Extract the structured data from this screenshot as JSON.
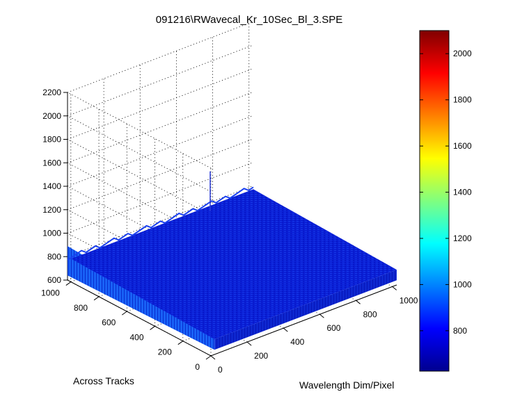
{
  "chart_data": {
    "type": "surface",
    "title": "091216\\RWavecal_Kr_10Sec_Bl_3.SPE",
    "xlabel": "Wavelength Dim/Pixel",
    "ylabel": "Across Tracks",
    "zlabel": "",
    "x_ticks": [
      "0",
      "200",
      "400",
      "600",
      "800",
      "1000"
    ],
    "y_ticks": [
      "0",
      "200",
      "400",
      "600",
      "800",
      "1000"
    ],
    "z_ticks": [
      "600",
      "800",
      "1000",
      "1200",
      "1400",
      "1600",
      "1800",
      "2000",
      "2200"
    ],
    "xlim": [
      0,
      1024
    ],
    "ylim": [
      0,
      1024
    ],
    "zlim": [
      600,
      2200
    ],
    "grid": true,
    "colormap": "jet",
    "colorbar": {
      "range": [
        625,
        2100
      ],
      "ticks": [
        "800",
        "1000",
        "1200",
        "1400",
        "1600",
        "1800",
        "2000"
      ],
      "placement": "right"
    },
    "surface_summary": {
      "baseline_level": 640,
      "noise_peak_level": 900,
      "spike": {
        "x": 760,
        "y": 990,
        "z": 1100
      }
    }
  }
}
